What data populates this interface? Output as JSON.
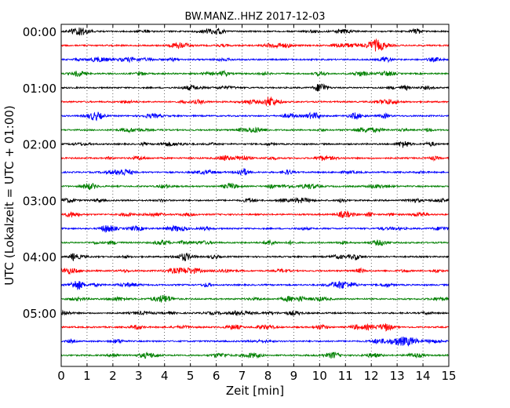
{
  "chart_data": {
    "type": "line",
    "title": "BW.MANZ..HHZ 2017-12-03",
    "xlabel": "Zeit  [min]",
    "ylabel": "UTC (Lokalzeit = UTC + 01:00)",
    "xlim": [
      0,
      15
    ],
    "x_ticks": [
      0,
      1,
      2,
      3,
      4,
      5,
      6,
      7,
      8,
      9,
      10,
      11,
      12,
      13,
      14,
      15
    ],
    "y_tick_labels": [
      "00:00",
      "01:00",
      "02:00",
      "03:00",
      "04:00",
      "05:00"
    ],
    "grid": "vertical dotted",
    "trace_interval_minutes": 15,
    "trace_count": 24,
    "trace_colors": [
      "#000000",
      "#ff0000",
      "#0000ff",
      "#008000"
    ]
  }
}
